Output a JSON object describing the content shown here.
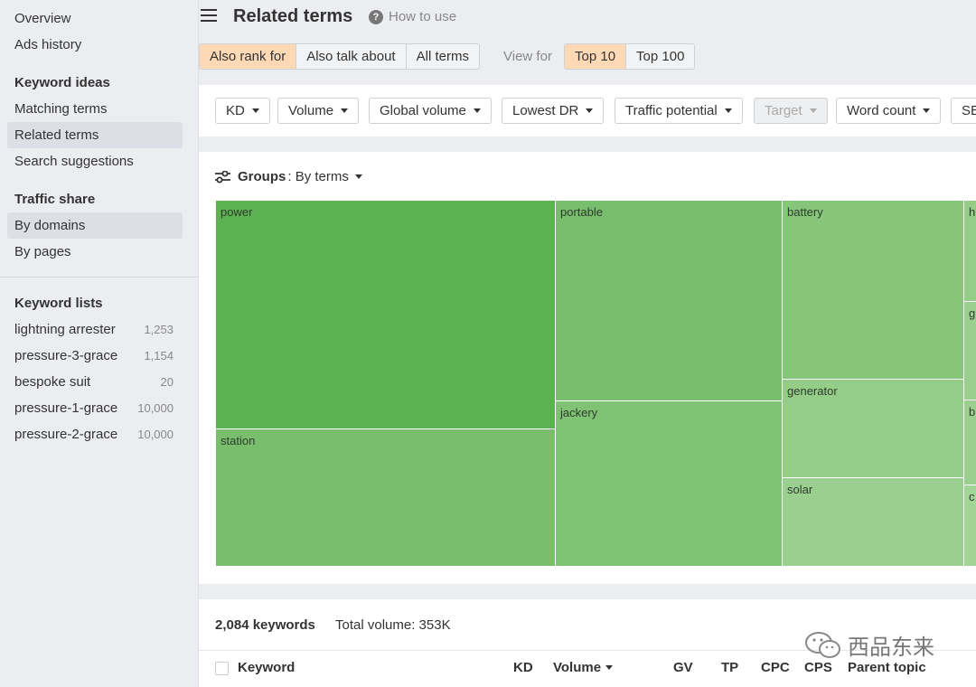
{
  "sidebar": {
    "items_top": [
      "Overview",
      "Ads history"
    ],
    "keyword_ideas": {
      "heading": "Keyword ideas",
      "items": [
        "Matching terms",
        "Related terms",
        "Search suggestions"
      ]
    },
    "traffic_share": {
      "heading": "Traffic share",
      "items": [
        "By domains",
        "By pages"
      ]
    },
    "keyword_lists": {
      "heading": "Keyword lists",
      "items": [
        {
          "name": "lightning arrester",
          "count": "1,253"
        },
        {
          "name": "pressure-3-grace",
          "count": "1,154"
        },
        {
          "name": "bespoke suit",
          "count": "20"
        },
        {
          "name": "pressure-1-grace",
          "count": "10,000"
        },
        {
          "name": "pressure-2-grace",
          "count": "10,000"
        }
      ]
    }
  },
  "header": {
    "title": "Related terms",
    "help_label": "How to use"
  },
  "mode_tabs": [
    "Also rank for",
    "Also talk about",
    "All terms"
  ],
  "view_for": {
    "label": "View for",
    "options": [
      "Top 10",
      "Top 100"
    ]
  },
  "filters": [
    "KD",
    "Volume",
    "Global volume",
    "Lowest DR",
    "Traffic potential",
    "Target",
    "Word count",
    "SE"
  ],
  "groups": {
    "label": "Groups",
    "value": "By terms",
    "treemap": [
      {
        "label": "power",
        "color": "#5cb250"
      },
      {
        "label": "station",
        "color": "#78be6d"
      },
      {
        "label": "portable",
        "color": "#78be6d"
      },
      {
        "label": "jackery",
        "color": "#80c274"
      },
      {
        "label": "battery",
        "color": "#86c57a"
      },
      {
        "label": "generator",
        "color": "#94cc88"
      },
      {
        "label": "solar",
        "color": "#9bcf8f"
      },
      {
        "label": "h",
        "color": "#94cc88"
      },
      {
        "label": "g",
        "color": "#9bcf8f"
      },
      {
        "label": "b",
        "color": "#9bcf8f"
      },
      {
        "label": "c",
        "color": "#a2d397"
      }
    ]
  },
  "results": {
    "keywords_count": "2,084 keywords",
    "total_volume": "Total volume: 353K",
    "columns": [
      "Keyword",
      "KD",
      "Volume",
      "GV",
      "TP",
      "CPC",
      "CPS",
      "Parent topic"
    ]
  },
  "watermark": "西品东来",
  "colors": {
    "active_tab": "#ffd9b5",
    "sidebar_bg": "#ebedf0",
    "treemap_primary": "#5cb250"
  }
}
